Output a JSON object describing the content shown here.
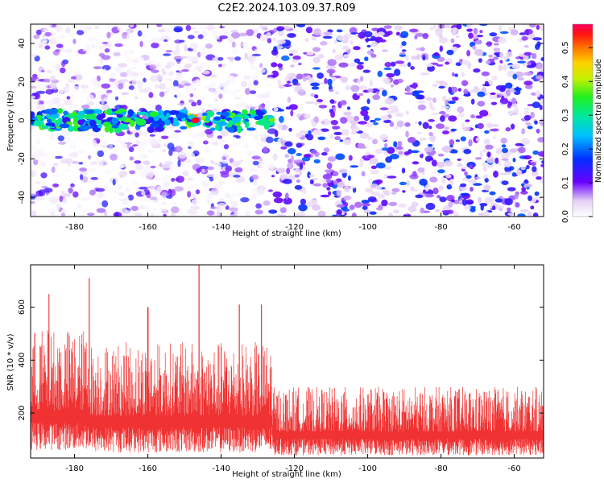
{
  "title": "C2E2.2024.103.09.37.R09",
  "chart_data": [
    {
      "type": "heatmap",
      "xlabel": "Height of straight line (km)",
      "ylabel": "Frequency (Hz)",
      "xlim": [
        -192,
        -52
      ],
      "ylim": [
        -50,
        50
      ],
      "xticks": [
        -180,
        -160,
        -140,
        -120,
        -100,
        -80,
        -60
      ],
      "yticks": [
        -40,
        -20,
        0,
        20,
        40
      ],
      "colorbar": {
        "label": "Normalized spectral amplitude",
        "range": [
          0.0,
          0.57
        ],
        "ticks": [
          0.0,
          0.1,
          0.2,
          0.3,
          0.4,
          0.5
        ]
      },
      "features": {
        "signal_band": {
          "x_range": [
            -192,
            -126
          ],
          "frequency": 0,
          "half_width_hz": 5,
          "peak_amplitude": 0.55,
          "peak_x": -147
        }
      }
    },
    {
      "type": "line",
      "xlabel": "Height of straight line (km)",
      "ylabel": "SNR (10 * v/v)",
      "xlim": [
        -192,
        -52
      ],
      "ylim": [
        30,
        760
      ],
      "xticks": [
        -180,
        -160,
        -140,
        -120,
        -100,
        -80,
        -60
      ],
      "yticks": [
        200,
        400,
        600
      ],
      "color": "#f03232",
      "peaks": [
        {
          "x": -187,
          "y": 650
        },
        {
          "x": -176,
          "y": 710
        },
        {
          "x": -160,
          "y": 600
        },
        {
          "x": -146,
          "y": 760
        },
        {
          "x": -135,
          "y": 610
        },
        {
          "x": -129,
          "y": 610
        }
      ],
      "segments": [
        {
          "x_range": [
            -192,
            -176
          ],
          "min": 60,
          "baseline": 210,
          "max": 520
        },
        {
          "x_range": [
            -176,
            -126
          ],
          "min": 50,
          "baseline": 190,
          "max": 470
        },
        {
          "x_range": [
            -126,
            -52
          ],
          "min": 40,
          "baseline": 130,
          "max": 300
        }
      ]
    }
  ]
}
